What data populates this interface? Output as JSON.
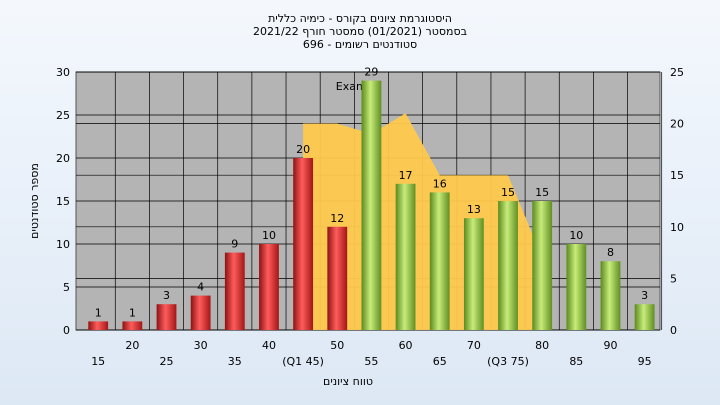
{
  "title_lines": [
    "היסטוגרמת ציונים בקורס - כימיה כללית",
    "בסמסטר  (01/2021)  סמסטר חורף 2021/22",
    "סטודנטים רשומים - 696"
  ],
  "colors": {
    "red_bar": "#d42a2a",
    "green_bar": "#8fbf3a",
    "area": "#ffc94d",
    "plot_bg": "#b4b4b4"
  },
  "chart_data": {
    "type": "bar",
    "title": "היסטוגרמת ציונים בקורס - כימיה כללית",
    "xlabel": "טווח ציונים",
    "ylabel": "מספר סטודנטים",
    "ylim": [
      0,
      30
    ],
    "y2lim": [
      0,
      25
    ],
    "yticks": [
      0,
      5,
      10,
      15,
      20,
      25,
      30
    ],
    "y2ticks": [
      0,
      5,
      10,
      15,
      20,
      25
    ],
    "categories": [
      "15",
      "20",
      "25",
      "30",
      "35",
      "40",
      "(Q1 45)",
      "50",
      "55",
      "60",
      "65",
      "70",
      "(Q3 75)",
      "80",
      "85",
      "90",
      "95"
    ],
    "values": [
      1,
      1,
      3,
      4,
      9,
      10,
      20,
      12,
      29,
      17,
      16,
      13,
      15,
      15,
      10,
      8,
      3
    ],
    "bar_colors": [
      "red",
      "red",
      "red",
      "red",
      "red",
      "red",
      "red",
      "red",
      "green",
      "green",
      "green",
      "green",
      "green",
      "green",
      "green",
      "green",
      "green"
    ],
    "area_series": {
      "name": "Exam_B",
      "points": [
        [
          45,
          0
        ],
        [
          45,
          20
        ],
        [
          50,
          20
        ],
        [
          55,
          19
        ],
        [
          60,
          21
        ],
        [
          65,
          15
        ],
        [
          70,
          15
        ],
        [
          75,
          15
        ],
        [
          80,
          7
        ],
        [
          80,
          0
        ]
      ]
    },
    "grid": true
  }
}
